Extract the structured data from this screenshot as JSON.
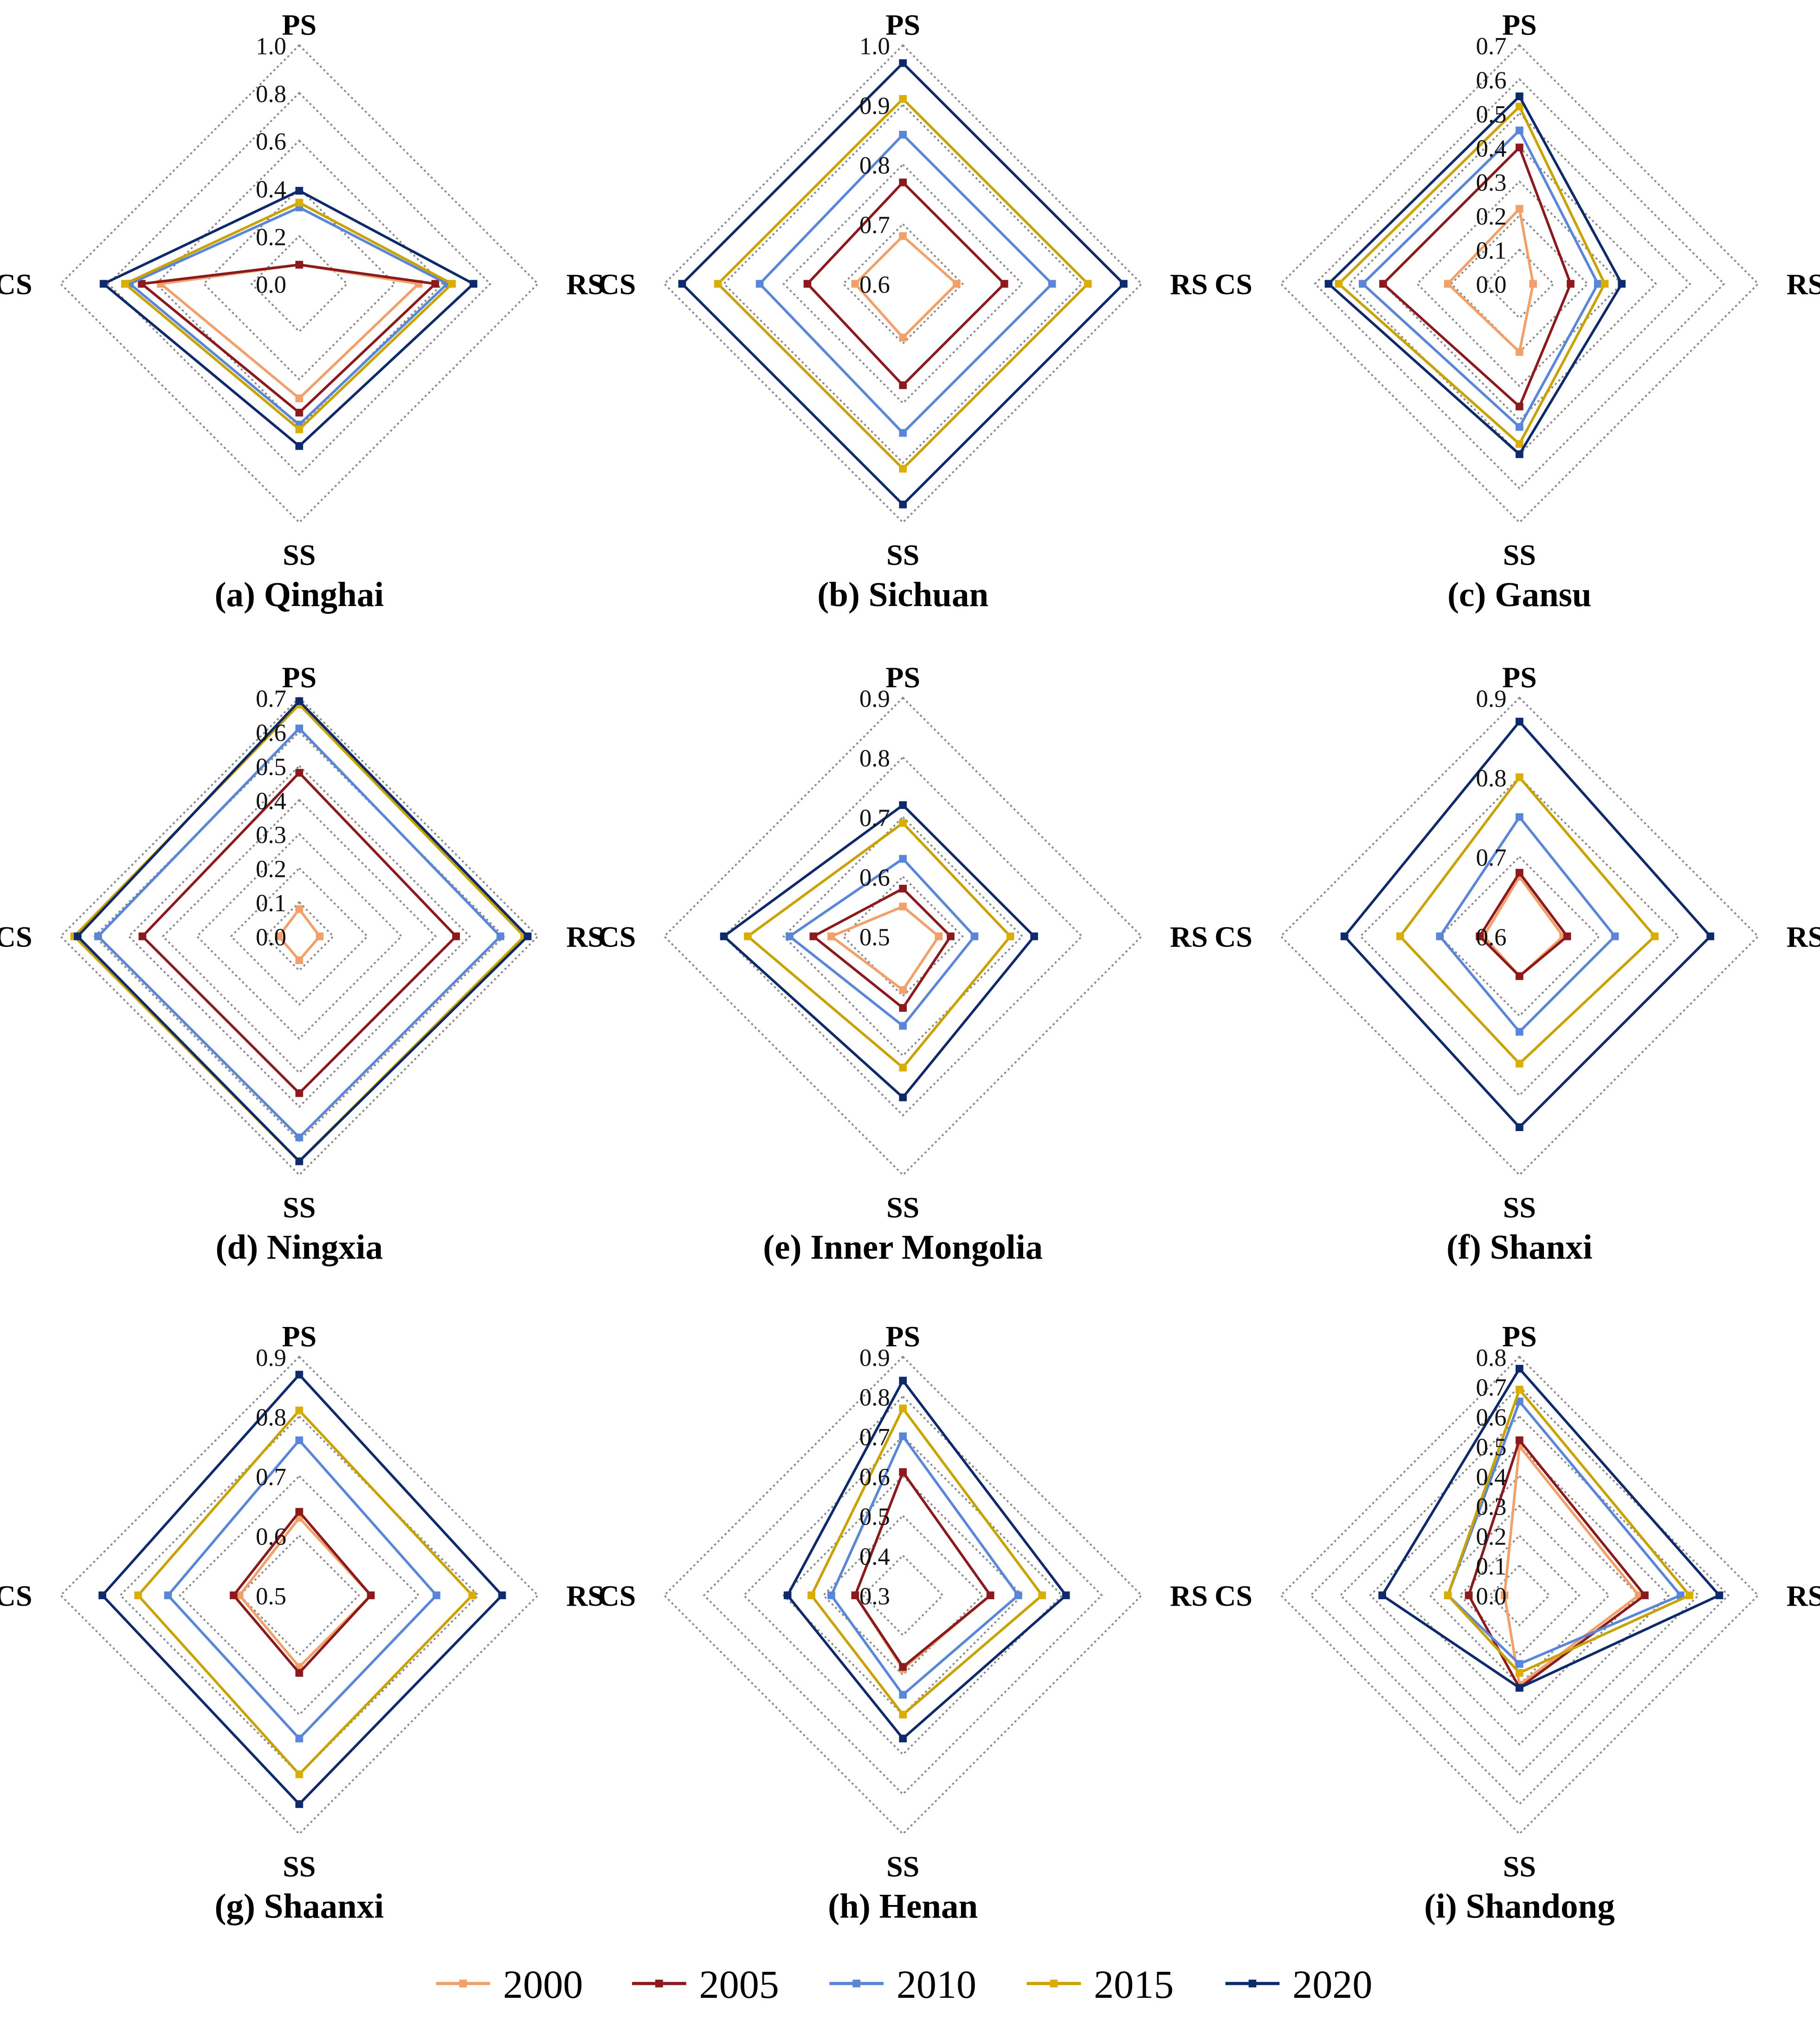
{
  "axes": [
    "PS",
    "RS",
    "SS",
    "CS"
  ],
  "legend": [
    {
      "label": "2000",
      "color": "#F2A06A"
    },
    {
      "label": "2005",
      "color": "#8B1A1E"
    },
    {
      "label": "2010",
      "color": "#5A86D8"
    },
    {
      "label": "2015",
      "color": "#D9AE00"
    },
    {
      "label": "2020",
      "color": "#0E2A6A"
    }
  ],
  "chart_data": [
    {
      "type": "radar",
      "title": "(a) Qinghai",
      "range": [
        0,
        1.0
      ],
      "ticks": [
        "0.0",
        "0.2",
        "0.4",
        "0.6",
        "0.8",
        "1.0"
      ],
      "series": [
        {
          "name": "2000",
          "values": [
            0.08,
            0.5,
            0.48,
            0.58
          ]
        },
        {
          "name": "2005",
          "values": [
            0.08,
            0.57,
            0.54,
            0.66
          ]
        },
        {
          "name": "2010",
          "values": [
            0.32,
            0.62,
            0.59,
            0.71
          ]
        },
        {
          "name": "2015",
          "values": [
            0.34,
            0.64,
            0.61,
            0.73
          ]
        },
        {
          "name": "2020",
          "values": [
            0.39,
            0.73,
            0.68,
            0.82
          ]
        }
      ]
    },
    {
      "type": "radar",
      "title": "(b) Sichuan",
      "range": [
        0.6,
        1.0
      ],
      "ticks": [
        "0.6",
        "0.7",
        "0.8",
        "0.9",
        "1.0"
      ],
      "series": [
        {
          "name": "2000",
          "values": [
            0.68,
            0.69,
            0.69,
            0.68
          ]
        },
        {
          "name": "2005",
          "values": [
            0.77,
            0.77,
            0.77,
            0.76
          ]
        },
        {
          "name": "2010",
          "values": [
            0.85,
            0.85,
            0.85,
            0.84
          ]
        },
        {
          "name": "2015",
          "values": [
            0.91,
            0.91,
            0.91,
            0.91
          ]
        },
        {
          "name": "2020",
          "values": [
            0.97,
            0.97,
            0.97,
            0.97
          ]
        }
      ]
    },
    {
      "type": "radar",
      "title": "(c) Gansu",
      "range": [
        0,
        0.7
      ],
      "ticks": [
        "0.0",
        "0.1",
        "0.2",
        "0.3",
        "0.4",
        "0.5",
        "0.6",
        "0.7"
      ],
      "series": [
        {
          "name": "2000",
          "values": [
            0.22,
            0.04,
            0.2,
            0.21
          ]
        },
        {
          "name": "2005",
          "values": [
            0.4,
            0.15,
            0.36,
            0.4
          ]
        },
        {
          "name": "2010",
          "values": [
            0.45,
            0.23,
            0.42,
            0.46
          ]
        },
        {
          "name": "2015",
          "values": [
            0.52,
            0.25,
            0.47,
            0.53
          ]
        },
        {
          "name": "2020",
          "values": [
            0.55,
            0.3,
            0.5,
            0.56
          ]
        }
      ]
    },
    {
      "type": "radar",
      "title": "(d) Ningxia",
      "range": [
        0,
        0.7
      ],
      "ticks": [
        "0.0",
        "0.1",
        "0.2",
        "0.3",
        "0.4",
        "0.5",
        "0.6",
        "0.7"
      ],
      "series": [
        {
          "name": "2000",
          "values": [
            0.08,
            0.06,
            0.07,
            0.06
          ]
        },
        {
          "name": "2005",
          "values": [
            0.48,
            0.46,
            0.46,
            0.46
          ]
        },
        {
          "name": "2010",
          "values": [
            0.61,
            0.59,
            0.59,
            0.59
          ]
        },
        {
          "name": "2015",
          "values": [
            0.68,
            0.66,
            0.66,
            0.66
          ]
        },
        {
          "name": "2020",
          "values": [
            0.69,
            0.67,
            0.66,
            0.65
          ]
        }
      ]
    },
    {
      "type": "radar",
      "title": "(e) Inner Mongolia",
      "range": [
        0.5,
        0.9
      ],
      "ticks": [
        "0.5",
        "0.6",
        "0.7",
        "0.8",
        "0.9"
      ],
      "series": [
        {
          "name": "2000",
          "values": [
            0.55,
            0.56,
            0.59,
            0.62
          ]
        },
        {
          "name": "2005",
          "values": [
            0.58,
            0.58,
            0.62,
            0.65
          ]
        },
        {
          "name": "2010",
          "values": [
            0.63,
            0.62,
            0.65,
            0.69
          ]
        },
        {
          "name": "2015",
          "values": [
            0.69,
            0.68,
            0.72,
            0.76
          ]
        },
        {
          "name": "2020",
          "values": [
            0.72,
            0.72,
            0.77,
            0.8
          ]
        }
      ]
    },
    {
      "type": "radar",
      "title": "(f) Shanxi",
      "range": [
        0.6,
        0.9
      ],
      "ticks": [
        "0.6",
        "0.7",
        "0.8",
        "0.9"
      ],
      "series": [
        {
          "name": "2000",
          "values": [
            0.675,
            0.655,
            0.65,
            0.645
          ]
        },
        {
          "name": "2005",
          "values": [
            0.68,
            0.66,
            0.65,
            0.65
          ]
        },
        {
          "name": "2010",
          "values": [
            0.75,
            0.72,
            0.72,
            0.7
          ]
        },
        {
          "name": "2015",
          "values": [
            0.8,
            0.77,
            0.76,
            0.75
          ]
        },
        {
          "name": "2020",
          "values": [
            0.87,
            0.84,
            0.84,
            0.82
          ]
        }
      ]
    },
    {
      "type": "radar",
      "title": "(g) Shaanxi",
      "range": [
        0.5,
        0.9
      ],
      "ticks": [
        "0.5",
        "0.6",
        "0.7",
        "0.8",
        "0.9"
      ],
      "series": [
        {
          "name": "2000",
          "values": [
            0.63,
            0.62,
            0.62,
            0.6
          ]
        },
        {
          "name": "2005",
          "values": [
            0.64,
            0.62,
            0.63,
            0.61
          ]
        },
        {
          "name": "2010",
          "values": [
            0.76,
            0.73,
            0.74,
            0.72
          ]
        },
        {
          "name": "2015",
          "values": [
            0.81,
            0.79,
            0.8,
            0.77
          ]
        },
        {
          "name": "2020",
          "values": [
            0.87,
            0.84,
            0.85,
            0.83
          ]
        }
      ]
    },
    {
      "type": "radar",
      "title": "(h) Henan",
      "range": [
        0.3,
        0.9
      ],
      "ticks": [
        "0.3",
        "0.4",
        "0.5",
        "0.6",
        "0.7",
        "0.8",
        "0.9"
      ],
      "series": [
        {
          "name": "2000",
          "values": [
            0.61,
            0.52,
            0.485,
            0.42
          ]
        },
        {
          "name": "2005",
          "values": [
            0.61,
            0.52,
            0.48,
            0.42
          ]
        },
        {
          "name": "2010",
          "values": [
            0.7,
            0.59,
            0.55,
            0.48
          ]
        },
        {
          "name": "2015",
          "values": [
            0.77,
            0.65,
            0.6,
            0.53
          ]
        },
        {
          "name": "2020",
          "values": [
            0.84,
            0.71,
            0.66,
            0.59
          ]
        }
      ]
    },
    {
      "type": "radar",
      "title": "(i) Shandong",
      "range": [
        0,
        0.8
      ],
      "ticks": [
        "0.0",
        "0.1",
        "0.2",
        "0.3",
        "0.4",
        "0.5",
        "0.6",
        "0.7",
        "0.8"
      ],
      "series": [
        {
          "name": "2000",
          "values": [
            0.5,
            0.4,
            0.3,
            0.05
          ]
        },
        {
          "name": "2005",
          "values": [
            0.52,
            0.42,
            0.31,
            0.17
          ]
        },
        {
          "name": "2010",
          "values": [
            0.65,
            0.54,
            0.23,
            0.24
          ]
        },
        {
          "name": "2015",
          "values": [
            0.69,
            0.57,
            0.26,
            0.24
          ]
        },
        {
          "name": "2020",
          "values": [
            0.76,
            0.67,
            0.31,
            0.46
          ]
        }
      ]
    }
  ]
}
